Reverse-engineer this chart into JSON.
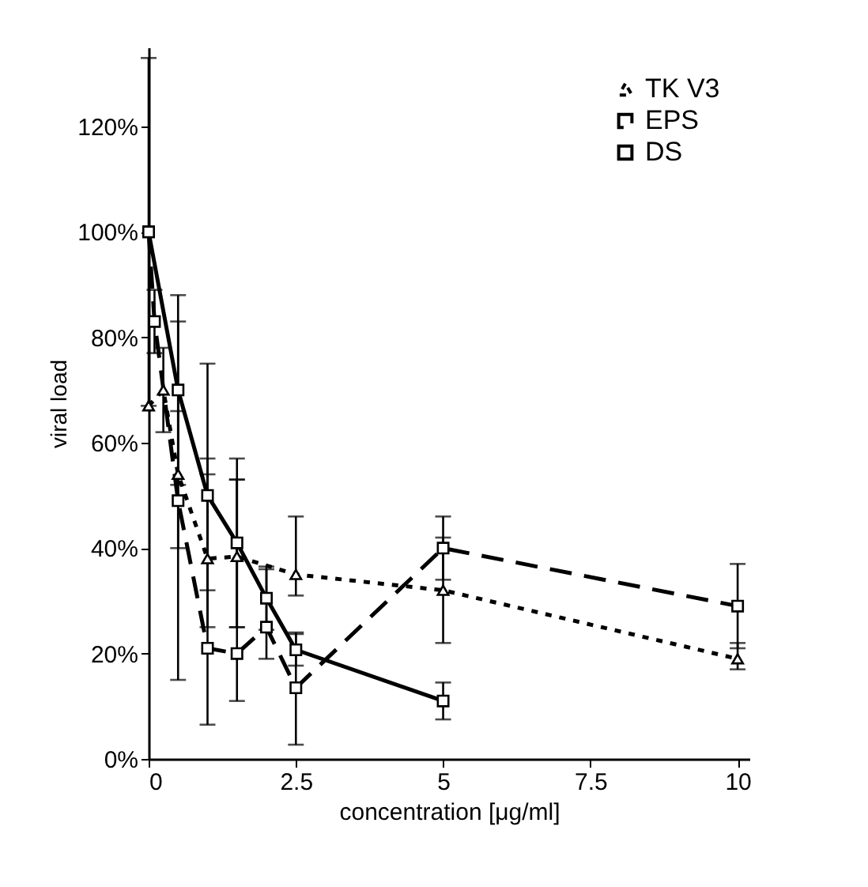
{
  "chart_data": {
    "type": "line",
    "xlabel": "concentration [μg/ml]",
    "ylabel": "viral load",
    "xlim": [
      0,
      10.2
    ],
    "xticks": [
      0,
      2.5,
      5,
      7.5,
      10
    ],
    "ylim": [
      0,
      135
    ],
    "yticks": [
      {
        "value": 0,
        "label": "0%"
      },
      {
        "value": 20,
        "label": "20%"
      },
      {
        "value": 40,
        "label": "40%"
      },
      {
        "value": 60,
        "label": "60%"
      },
      {
        "value": 80,
        "label": "80%"
      },
      {
        "value": 100,
        "label": "100%"
      },
      {
        "value": 120,
        "label": "120%"
      }
    ],
    "grid": false,
    "legend": "top right",
    "series": [
      {
        "name": "TK V3",
        "color": "#000000",
        "marker": "triangle",
        "line_style": "dotted",
        "x": [
          0,
          0.25,
          0.5,
          1,
          1.5,
          2.5,
          5,
          10
        ],
        "values": [
          67,
          70,
          54,
          38,
          38.4,
          35,
          32,
          19
        ],
        "errors": [
          null,
          [
            62,
            78
          ],
          [
            40,
            66
          ],
          [
            32,
            57
          ],
          [
            25,
            53
          ],
          [
            31,
            46
          ],
          [
            22,
            42
          ],
          [
            17,
            22
          ]
        ]
      },
      {
        "name": "EPS",
        "color": "#000000",
        "marker": "square",
        "line_style": "dashed",
        "x": [
          0,
          0.1,
          0.5,
          1,
          1.5,
          2,
          2.5,
          5,
          10
        ],
        "values": [
          100,
          83,
          49,
          21,
          20,
          25,
          13.5,
          40,
          29
        ],
        "errors": [
          null,
          [
            77,
            89
          ],
          [
            15,
            83
          ],
          [
            6.5,
            54
          ],
          [
            11,
            53
          ],
          [
            19,
            36
          ],
          [
            2.7,
            24
          ],
          [
            34,
            46
          ],
          [
            21,
            37
          ]
        ]
      },
      {
        "name": "DS",
        "color": "#000000",
        "marker": "square",
        "line_style": "solid",
        "x": [
          0,
          0.5,
          1,
          1.5,
          2,
          2.5,
          5
        ],
        "values": [
          100,
          70,
          50,
          41,
          30.5,
          20.7,
          11
        ],
        "errors": [
          33,
          18,
          25,
          16,
          6,
          3,
          3.5
        ]
      }
    ]
  }
}
